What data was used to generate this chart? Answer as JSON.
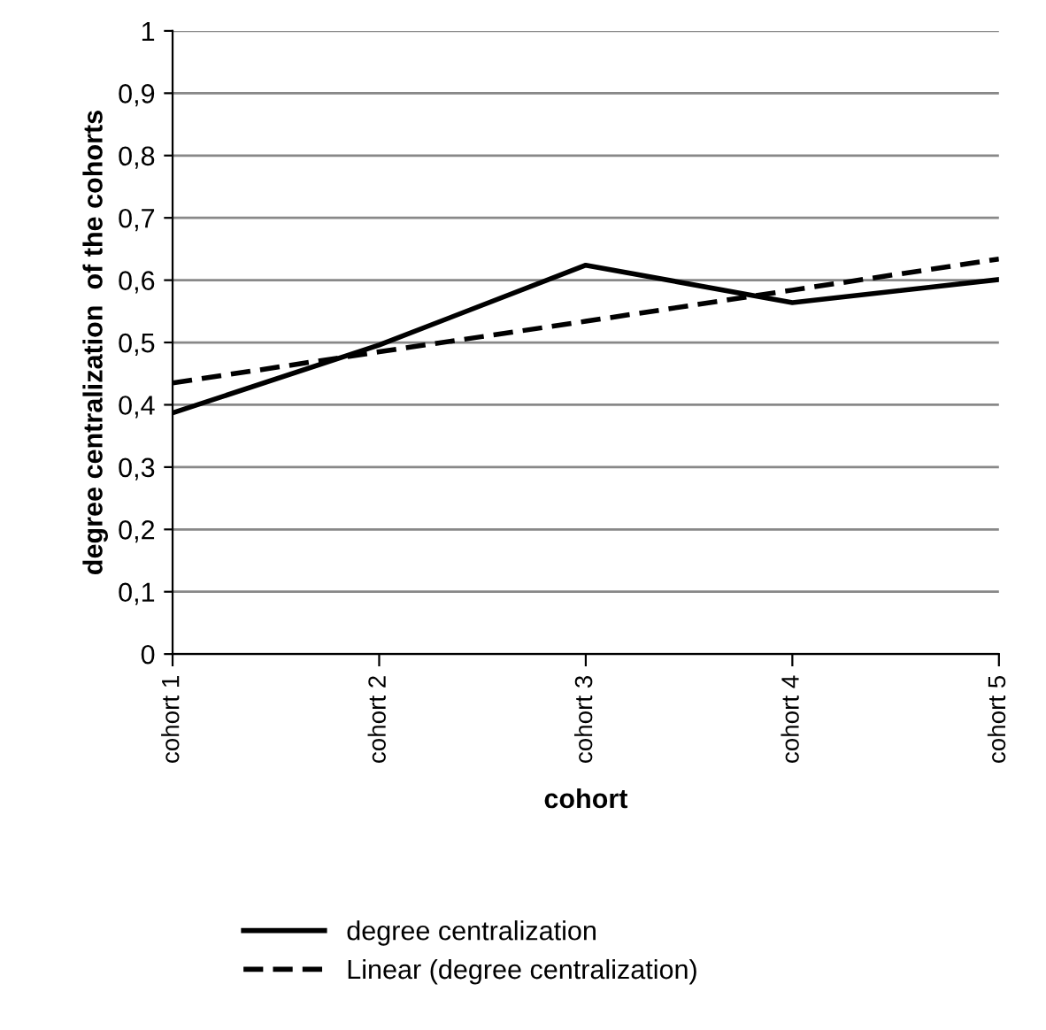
{
  "chart_data": {
    "type": "line",
    "xlabel": "cohort",
    "ylabel": "degree centralization  of the cohorts",
    "categories": [
      "cohort 1",
      "cohort 2",
      "cohort 3",
      "cohort 4",
      "cohort 5"
    ],
    "series": [
      {
        "name": "degree centralization",
        "color": "#000000",
        "line_style": "solid",
        "values": [
          0.387,
          0.496,
          0.624,
          0.564,
          0.601
        ]
      },
      {
        "name": "Linear (degree centralization)",
        "color": "#000000",
        "line_style": "dashed",
        "values": [
          0.435,
          0.485,
          0.534,
          0.584,
          0.634
        ]
      }
    ],
    "ylim": [
      0,
      1
    ],
    "yticks": [
      0,
      {
        "value": 0.1,
        "label": "0,1"
      },
      {
        "value": 0.2,
        "label": "0,2"
      },
      {
        "value": 0.3,
        "label": "0,3"
      },
      {
        "value": 0.4,
        "label": "0,4"
      },
      {
        "value": 0.5,
        "label": "0,5"
      },
      {
        "value": 0.6,
        "label": "0,6"
      },
      {
        "value": 0.7,
        "label": "0,7"
      },
      {
        "value": 0.8,
        "label": "0,8"
      },
      {
        "value": 0.9,
        "label": "0,9"
      },
      1
    ],
    "grid": "y",
    "legend": "bottom",
    "marker": "none"
  }
}
